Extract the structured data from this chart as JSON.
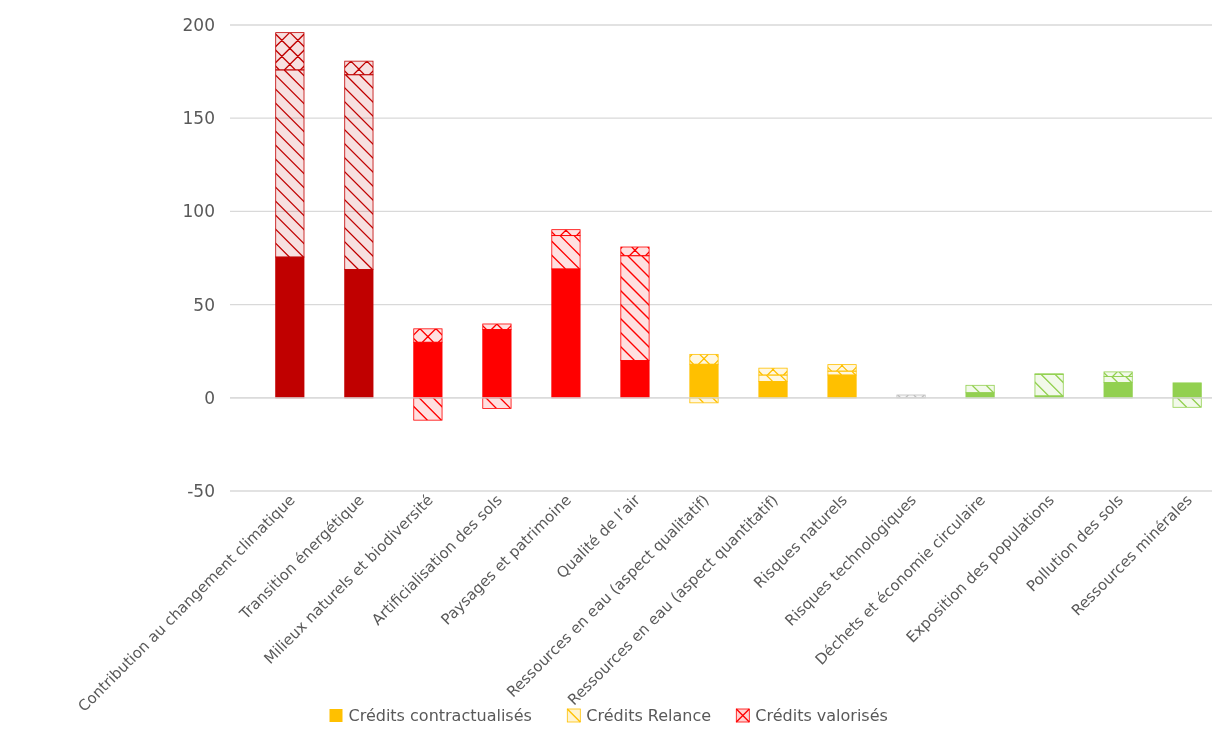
{
  "chart_data": {
    "type": "bar",
    "stacked": true,
    "categories": [
      "Contribution au changement climatique",
      "Transition énergétique",
      "Milieux naturels et biodiversité",
      "Artificialisation des sols",
      "Paysages et patrimoine",
      "Qualité de l’air",
      "Ressources en eau (aspect qualitatif)",
      "Ressources en eau (aspect quantitatif)",
      "Risques naturels",
      "Risques technologiques",
      "Déchets et économie circulaire",
      "Exposition des populations",
      "Pollution des sols",
      "Ressources minérales"
    ],
    "series": [
      {
        "name": "Crédits contractualisés",
        "color": "#ffc000",
        "values": [
          75.5,
          68.8,
          29.8,
          36.6,
          69.1,
          20,
          18,
          8.8,
          12.2,
          null,
          2.7,
          1,
          8.2,
          8
        ],
        "colors": [
          "#c00000",
          "#c00000",
          "#ff0000",
          "#ff0000",
          "#ff0000",
          "#ff0000",
          "#ffc000",
          "#ffc000",
          "#ffc000",
          null,
          "#92d050",
          "#92d050",
          "#92d050",
          "#92d050"
        ]
      },
      {
        "name": "Crédits Relance",
        "color": "#ffc000",
        "values": [
          100.4,
          104.5,
          -12,
          -5.7,
          17.9,
          56.2,
          -2.7,
          3.4,
          2.1,
          0,
          4,
          11.5,
          3.2,
          -5.1
        ],
        "colors": [
          "#c00000",
          "#c00000",
          "#ff0000",
          "#ff0000",
          "#ff0000",
          "#ff0000",
          "#ffc000",
          "#ffc000",
          "#ffc000",
          "#ffc000",
          "#92d050",
          "#92d050",
          "#92d050",
          "#92d050"
        ]
      },
      {
        "name": "Crédits valorisés",
        "color": "#ff0000",
        "values": [
          20,
          7.3,
          7.2,
          3,
          3.2,
          4.7,
          5.3,
          3.7,
          3.5,
          1.5,
          0,
          0.4,
          2.5,
          0
        ],
        "colors": [
          "#c00000",
          "#c00000",
          "#ff0000",
          "#ff0000",
          "#ff0000",
          "#ff0000",
          "#ffc000",
          "#ffc000",
          "#ffc000",
          "#bfbfbf",
          "#92d050",
          "#92d050",
          "#92d050",
          "#92d050"
        ]
      }
    ],
    "ylim": [
      -50,
      200
    ],
    "yticks": [
      -50,
      0,
      50,
      100,
      150,
      200
    ],
    "grid": "y",
    "legend": "bottom"
  }
}
